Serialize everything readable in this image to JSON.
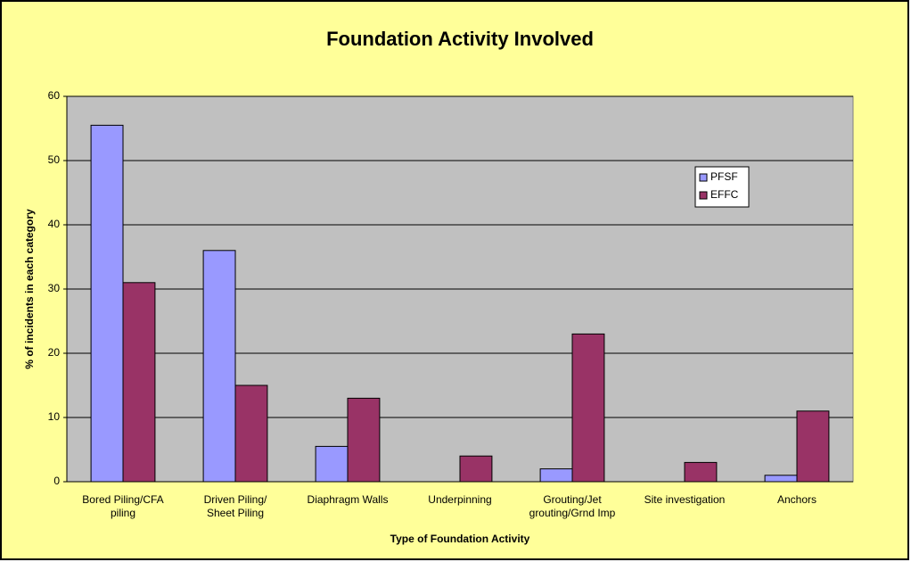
{
  "chart_data": {
    "type": "bar",
    "title": "Foundation Activity Involved",
    "x_label": "Type of Foundation Activity",
    "y_label": "% of incidents in each category",
    "categories": [
      "Bored Piling/CFA\npiling",
      "Driven Piling/\nSheet Piling",
      "Diaphragm Walls",
      "Underpinning",
      "Grouting/Jet\ngrouting/Grnd Imp",
      "Site investigation",
      "Anchors"
    ],
    "series": [
      {
        "name": "PFSF",
        "color": "#9999FF",
        "values": [
          55.5,
          36,
          5.5,
          0,
          2,
          0,
          1
        ]
      },
      {
        "name": "EFFC",
        "color": "#993366",
        "values": [
          31,
          15,
          13,
          4,
          23,
          3,
          11
        ]
      }
    ],
    "ylim": [
      0,
      60
    ],
    "yticks": [
      0,
      10,
      20,
      30,
      40,
      50,
      60
    ],
    "grid": true,
    "legend": "upper right"
  }
}
